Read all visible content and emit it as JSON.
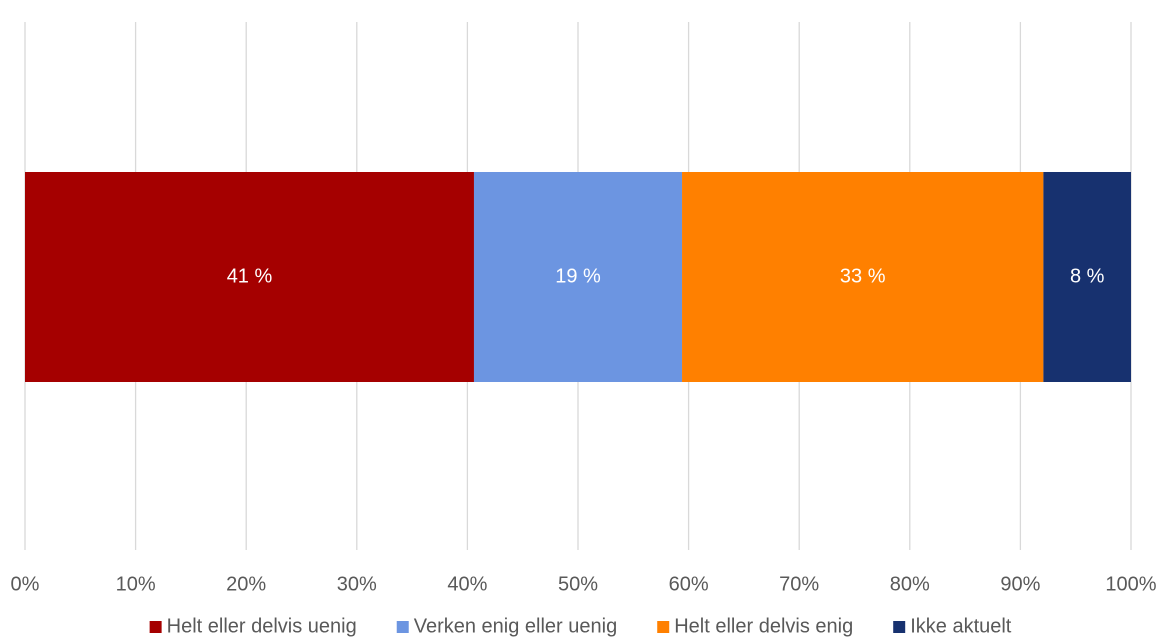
{
  "chart_data": {
    "type": "bar",
    "orientation": "horizontal",
    "stacked": true,
    "xlim": [
      0,
      100
    ],
    "x_ticks": [
      "0%",
      "10%",
      "20%",
      "30%",
      "40%",
      "50%",
      "60%",
      "70%",
      "80%",
      "90%",
      "100%"
    ],
    "grid": true,
    "legend_position": "bottom",
    "series": [
      {
        "name": "Helt eller delvis uenig",
        "value": 41,
        "label": "41 %",
        "color": "#A50000"
      },
      {
        "name": "Verken enig eller uenig",
        "value": 19,
        "label": "19 %",
        "color": "#6C95E1"
      },
      {
        "name": "Helt eller delvis enig",
        "value": 33,
        "label": "33 %",
        "color": "#FF8000"
      },
      {
        "name": "Ikke aktuelt",
        "value": 8,
        "label": "8 %",
        "color": "#17316F"
      }
    ]
  }
}
